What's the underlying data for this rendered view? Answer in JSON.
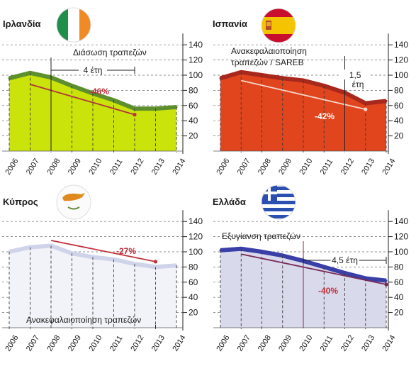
{
  "chart_data": [
    {
      "type": "area",
      "country": "Ιρλανδία",
      "flag": "ireland",
      "categories": [
        "2006",
        "2007",
        "2008",
        "2009",
        "2010",
        "2011",
        "2012",
        "2013",
        "2014"
      ],
      "values": [
        96,
        103,
        97,
        86,
        76,
        67,
        56,
        56,
        58
      ],
      "trend": {
        "from": "2007",
        "to": "2012",
        "values": [
          88,
          48
        ]
      },
      "change_label": "-46%",
      "annotations": [
        {
          "text": "Διάσωση τραπεζών",
          "at": "2008"
        },
        {
          "text": "4 έτη",
          "from": "2008",
          "to": "2012"
        }
      ],
      "ylim": [
        0,
        140
      ],
      "yticks": [
        20,
        40,
        60,
        80,
        100,
        120,
        140
      ],
      "colors": {
        "fill": "#c9e30b",
        "top": "#5e8f2e",
        "trend": "#b0343a",
        "label": "#c0303a"
      }
    },
    {
      "type": "area",
      "country": "Ισπανία",
      "flag": "spain",
      "categories": [
        "2006",
        "2007",
        "2008",
        "2009",
        "2010",
        "2011",
        "2012",
        "2013",
        "2014"
      ],
      "values": [
        96,
        104,
        100,
        96,
        93,
        86,
        77,
        63,
        66
      ],
      "trend": {
        "from": "2007",
        "to": "2013",
        "values": [
          93,
          55
        ]
      },
      "change_label": "-42%",
      "annotations": [
        {
          "text": "Ανακεφαλαιοποίηση",
          "at": "2012"
        },
        {
          "text": "τραπεζών / SAREB",
          "at": "2012"
        },
        {
          "text": "1,5",
          "from": "2012",
          "to": "2013"
        },
        {
          "text": "έτη",
          "from": "2012",
          "to": "2013"
        }
      ],
      "ylim": [
        0,
        140
      ],
      "yticks": [
        20,
        40,
        60,
        80,
        100,
        120,
        140
      ],
      "colors": {
        "fill": "#e0451e",
        "top": "#a8281d",
        "trend": "#f2d6c8",
        "label": "#ffffff"
      }
    },
    {
      "type": "area",
      "country": "Κύπρος",
      "flag": "cyprus",
      "categories": [
        "2006",
        "2007",
        "2008",
        "2009",
        "2010",
        "2011",
        "2012",
        "2013",
        "2014"
      ],
      "values": [
        100,
        106,
        108,
        98,
        93,
        90,
        84,
        80,
        82
      ],
      "trend": {
        "from": "2008",
        "to": "2013",
        "values": [
          115,
          87
        ]
      },
      "change_label": "-27%",
      "annotations": [
        {
          "text": "Ανακεφαλαιοποίηση τραπεζών",
          "at": "2013"
        }
      ],
      "ylim": [
        0,
        140
      ],
      "yticks": [
        20,
        40,
        60,
        80,
        100,
        120,
        140
      ],
      "colors": {
        "fill": "#f2f3f8",
        "top": "#cfd4ea",
        "trend": "#c0303a",
        "label": "#c0303a"
      }
    },
    {
      "type": "area",
      "country": "Ελλάδα",
      "flag": "greece",
      "categories": [
        "2006",
        "2007",
        "2008",
        "2009",
        "2010",
        "2011",
        "2012",
        "2013",
        "2014"
      ],
      "values": [
        102,
        104,
        100,
        95,
        88,
        80,
        72,
        65,
        62
      ],
      "trend": {
        "from": "2007",
        "to": "2014",
        "values": [
          97,
          57
        ]
      },
      "change_label": "-40%",
      "annotations": [
        {
          "text": "Εξυγίανση τραπεζών",
          "at": "2010"
        },
        {
          "text": "4,5 έτη",
          "from": "2010",
          "to": "2014"
        }
      ],
      "ylim": [
        0,
        140
      ],
      "yticks": [
        20,
        40,
        60,
        80,
        100,
        120,
        140
      ],
      "colors": {
        "fill": "#d9d9ec",
        "top": "#3a3fa8",
        "trend": "#7a2a55",
        "label": "#c0303a"
      }
    }
  ]
}
